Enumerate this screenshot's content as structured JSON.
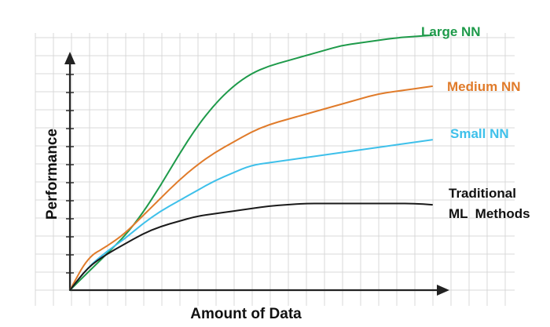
{
  "chart_data": {
    "type": "line",
    "xlabel": "Amount of Data",
    "ylabel": "Performance",
    "xlim": [
      0,
      100
    ],
    "ylim": [
      0,
      100
    ],
    "grid": true,
    "series": [
      {
        "name": "Large NN",
        "color": "#1e9a4a",
        "label_lines": [
          "Large NN"
        ],
        "x": [
          0,
          5,
          10,
          15,
          20,
          25,
          30,
          35,
          40,
          45,
          50,
          55,
          60,
          65,
          70,
          75,
          80,
          85,
          90,
          95,
          100
        ],
        "y": [
          0,
          7,
          14,
          21,
          30,
          41,
          53,
          64,
          73,
          80,
          85,
          88,
          90,
          92,
          94,
          96,
          97,
          98,
          99,
          99.5,
          100
        ]
      },
      {
        "name": "Medium NN",
        "color": "#e07b2a",
        "label_lines": [
          "Medium NN"
        ],
        "x": [
          0,
          5,
          10,
          15,
          20,
          25,
          30,
          35,
          40,
          45,
          50,
          55,
          60,
          65,
          70,
          75,
          80,
          85,
          90,
          95,
          100
        ],
        "y": [
          0,
          13,
          17,
          22,
          29,
          36,
          43,
          49,
          54,
          58,
          62,
          65,
          67,
          69,
          71,
          73,
          75,
          77,
          78,
          79,
          80
        ]
      },
      {
        "name": "Small NN",
        "color": "#3ec0ea",
        "label_lines": [
          "Small NN"
        ],
        "x": [
          0,
          5,
          10,
          15,
          20,
          25,
          30,
          35,
          40,
          45,
          50,
          55,
          60,
          65,
          70,
          75,
          80,
          85,
          90,
          95,
          100
        ],
        "y": [
          0,
          9,
          15,
          20,
          26,
          31,
          35,
          39,
          43,
          46,
          49,
          50,
          51,
          52,
          53,
          54,
          55,
          56,
          57,
          58,
          59
        ]
      },
      {
        "name": "Traditional ML Methods",
        "color": "#1a1a1a",
        "label_lines": [
          "Traditional",
          "ML  Methods"
        ],
        "x": [
          0,
          5,
          10,
          15,
          20,
          25,
          30,
          35,
          40,
          45,
          50,
          55,
          60,
          65,
          70,
          75,
          80,
          85,
          90,
          95,
          100
        ],
        "y": [
          0,
          9,
          14,
          18,
          22,
          25,
          27,
          29,
          30,
          31,
          32,
          33,
          33.5,
          34,
          34,
          34,
          34,
          34,
          34,
          34,
          33.5
        ]
      }
    ]
  }
}
